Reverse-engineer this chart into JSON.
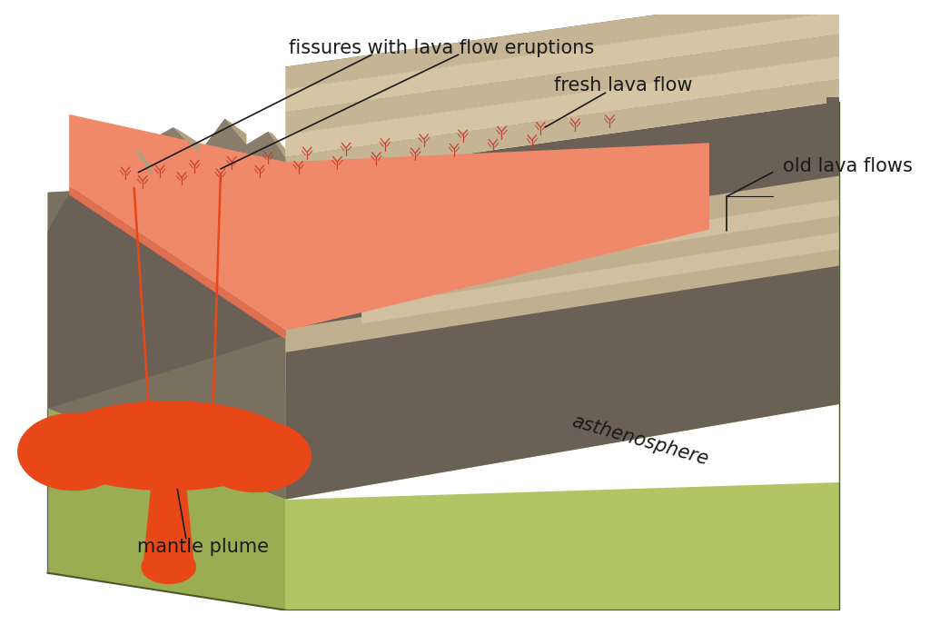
{
  "bg_color": "#ffffff",
  "colors": {
    "asth_left": "#9aad52",
    "asth_right": "#b3c465",
    "asth_top": "#c8d878",
    "crust_left": "#7a7060",
    "crust_right": "#6a6055",
    "mountain_dark": "#6a6055",
    "mountain_mid": "#8a7d6a",
    "mountain_light": "#b0a080",
    "fresh_lava": "#f0896a",
    "fresh_lava_edge": "#e07050",
    "layer_dark": "#6a6055",
    "layer_light": "#c5b595",
    "layer_edge": "#a09070",
    "plume_color": "#e84818",
    "fissure_color": "#e84818",
    "eruption_color": "#c84030",
    "line_color": "#1a1a1a"
  },
  "labels": {
    "fissures": "fissures with lava flow eruptions",
    "fresh_lava": "fresh lava flow",
    "old_lava": "old lava flows",
    "mantle_plume": "mantle plume",
    "asthenosphere": "asthenosphere"
  },
  "font_size": 14
}
